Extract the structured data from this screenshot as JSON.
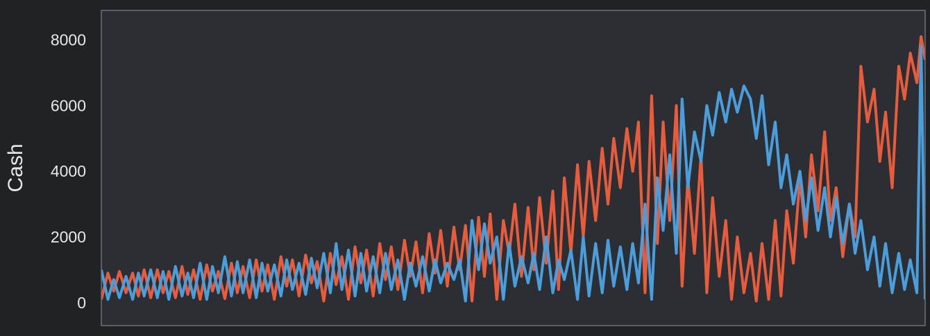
{
  "theme": {
    "page_background": "#202326",
    "plot_background": "#2b2e33",
    "frame_color": "#6e7276",
    "text_color": "#e8e8e8"
  },
  "chart_data": {
    "type": "line",
    "title": "",
    "xlabel": "",
    "ylabel": "Cash",
    "ylim": [
      -700,
      8900
    ],
    "xlim": [
      0,
      1000
    ],
    "yticks": [
      0,
      2000,
      4000,
      6000,
      8000
    ],
    "ytick_labels": [
      "0",
      "2000",
      "4000",
      "6000",
      "8000"
    ],
    "x_ticks_visible": false,
    "grid": false,
    "legend": "none",
    "series": [
      {
        "color": "#e85c3c",
        "x": [
          0,
          8,
          15,
          22,
          30,
          38,
          45,
          52,
          60,
          68,
          75,
          82,
          90,
          98,
          105,
          112,
          120,
          128,
          135,
          142,
          150,
          158,
          165,
          172,
          180,
          188,
          195,
          202,
          210,
          218,
          225,
          232,
          240,
          248,
          255,
          262,
          270,
          278,
          285,
          292,
          300,
          308,
          315,
          322,
          330,
          338,
          345,
          352,
          360,
          368,
          375,
          382,
          390,
          398,
          405,
          412,
          420,
          428,
          435,
          442,
          450,
          458,
          465,
          472,
          480,
          488,
          495,
          502,
          510,
          518,
          525,
          532,
          540,
          548,
          555,
          562,
          570,
          578,
          585,
          592,
          600,
          608,
          615,
          622,
          630,
          638,
          645,
          652,
          660,
          668,
          675,
          682,
          690,
          698,
          705,
          712,
          720,
          728,
          735,
          742,
          750,
          758,
          765,
          772,
          780,
          788,
          795,
          802,
          810,
          818,
          825,
          832,
          840,
          848,
          855,
          862,
          870,
          878,
          885,
          892,
          900,
          908,
          915,
          922,
          930,
          938,
          945,
          952,
          960,
          968,
          975,
          982,
          990,
          995,
          1000
        ],
        "y": [
          100,
          900,
          350,
          950,
          300,
          900,
          200,
          1000,
          150,
          1000,
          300,
          950,
          150,
          1100,
          250,
          1000,
          100,
          1150,
          350,
          950,
          120,
          1200,
          300,
          1100,
          150,
          1300,
          350,
          1150,
          100,
          1400,
          500,
          1300,
          200,
          1450,
          600,
          1250,
          50,
          1500,
          550,
          1400,
          100,
          1700,
          600,
          1600,
          200,
          1800,
          700,
          1700,
          400,
          1900,
          800,
          1850,
          300,
          2100,
          900,
          2200,
          500,
          2300,
          1000,
          2350,
          50,
          2600,
          800,
          2700,
          100,
          2500,
          1500,
          3000,
          800,
          2900,
          1000,
          3200,
          1200,
          3400,
          400,
          3800,
          1500,
          4200,
          2000,
          4300,
          2500,
          4700,
          3000,
          5000,
          3500,
          5300,
          4000,
          5500,
          300,
          6300,
          1800,
          5500,
          2500,
          6000,
          500,
          3800,
          1500,
          4500,
          300,
          3200,
          800,
          2500,
          100,
          2000,
          300,
          1500,
          50,
          1800,
          100,
          2500,
          200,
          2800,
          1200,
          3800,
          2000,
          4500,
          2800,
          5200,
          2500,
          3500,
          1400,
          3000,
          2000,
          7200,
          5500,
          6500,
          4300,
          5800,
          3500,
          7200,
          6200,
          7600,
          6700,
          8100,
          7400
        ]
      },
      {
        "color": "#4a9edb",
        "x": [
          0,
          8,
          15,
          22,
          30,
          38,
          45,
          52,
          60,
          68,
          75,
          82,
          90,
          98,
          105,
          112,
          120,
          128,
          135,
          142,
          150,
          158,
          165,
          172,
          180,
          188,
          195,
          202,
          210,
          218,
          225,
          232,
          240,
          248,
          255,
          262,
          270,
          278,
          285,
          292,
          300,
          308,
          315,
          322,
          330,
          338,
          345,
          352,
          360,
          368,
          375,
          382,
          390,
          398,
          405,
          412,
          420,
          428,
          435,
          442,
          450,
          458,
          465,
          472,
          480,
          488,
          495,
          502,
          510,
          518,
          525,
          532,
          540,
          548,
          555,
          562,
          570,
          578,
          585,
          592,
          600,
          608,
          615,
          622,
          630,
          638,
          645,
          652,
          660,
          668,
          675,
          682,
          690,
          698,
          705,
          712,
          720,
          728,
          735,
          742,
          750,
          758,
          765,
          772,
          780,
          788,
          795,
          802,
          810,
          818,
          825,
          832,
          840,
          848,
          855,
          862,
          870,
          878,
          885,
          892,
          900,
          908,
          915,
          922,
          930,
          938,
          945,
          952,
          960,
          968,
          975,
          982,
          990,
          995,
          1000
        ],
        "y": [
          1000,
          100,
          700,
          150,
          800,
          100,
          900,
          200,
          1000,
          150,
          950,
          100,
          1100,
          200,
          900,
          150,
          1200,
          100,
          1100,
          300,
          1400,
          200,
          1250,
          300,
          1300,
          150,
          1200,
          350,
          1150,
          200,
          1300,
          400,
          1200,
          250,
          1350,
          450,
          1500,
          300,
          1800,
          400,
          1600,
          200,
          1500,
          350,
          1400,
          300,
          1500,
          400,
          1300,
          100,
          1200,
          500,
          1400,
          350,
          1300,
          600,
          1200,
          700,
          1300,
          50,
          2500,
          1000,
          2400,
          1200,
          2000,
          100,
          1800,
          500,
          1400,
          600,
          1500,
          400,
          2000,
          300,
          1300,
          700,
          1600,
          100,
          2000,
          200,
          1800,
          300,
          1900,
          500,
          1700,
          400,
          1800,
          600,
          3000,
          100,
          3800,
          2200,
          4500,
          1500,
          6200,
          3500,
          5200,
          4300,
          6000,
          5100,
          6400,
          5500,
          6500,
          5800,
          6600,
          6200,
          5000,
          6300,
          4200,
          5500,
          3500,
          4500,
          3000,
          4000,
          2500,
          3800,
          2200,
          3500,
          2000,
          3200,
          1800,
          3000,
          1500,
          2500,
          1000,
          2000,
          500,
          1800,
          300,
          1500,
          400,
          1300,
          300,
          7800,
          100
        ]
      }
    ]
  }
}
